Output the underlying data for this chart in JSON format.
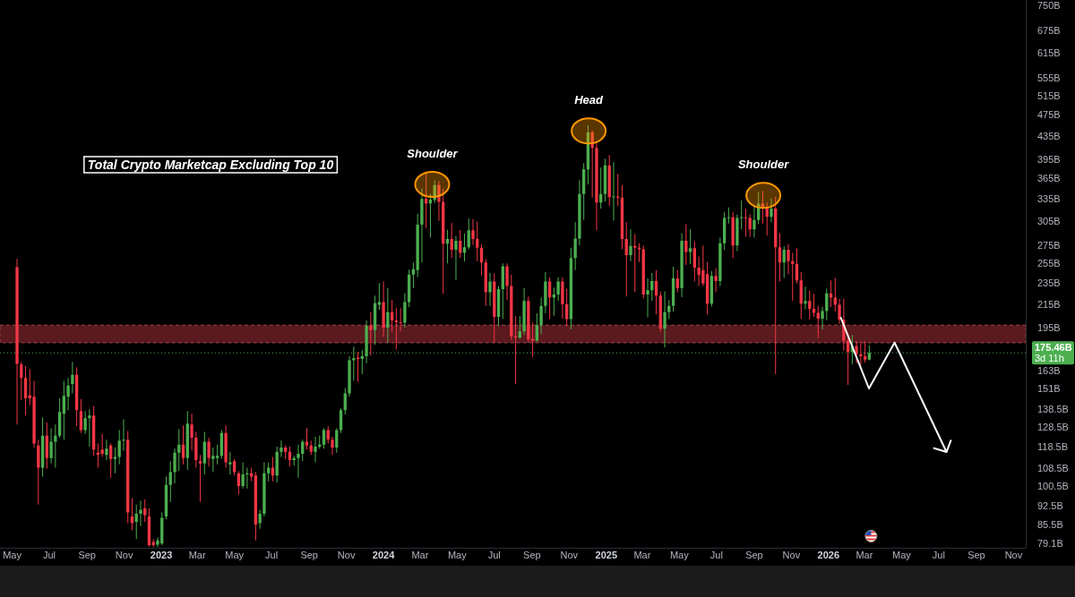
{
  "chart_data": {
    "type": "candlestick",
    "title": "Total Crypto Marketcap Excluding Top 10",
    "log": true,
    "xlim": [
      "2022-04-11",
      "2026-11-21"
    ],
    "ylim": [
      77.6,
      768
    ],
    "xticks": [
      {
        "value": "2022-05-01",
        "label": "May"
      },
      {
        "value": "2022-07-01",
        "label": "Jul"
      },
      {
        "value": "2022-09-01",
        "label": "Sep"
      },
      {
        "value": "2022-11-01",
        "label": "Nov"
      },
      {
        "value": "2023-01-01",
        "label": "2023"
      },
      {
        "value": "2023-03-01",
        "label": "Mar"
      },
      {
        "value": "2023-05-01",
        "label": "May"
      },
      {
        "value": "2023-07-01",
        "label": "Jul"
      },
      {
        "value": "2023-09-01",
        "label": "Sep"
      },
      {
        "value": "2023-11-01",
        "label": "Nov"
      },
      {
        "value": "2024-01-01",
        "label": "2024"
      },
      {
        "value": "2024-03-01",
        "label": "Mar"
      },
      {
        "value": "2024-05-01",
        "label": "May"
      },
      {
        "value": "2024-07-01",
        "label": "Jul"
      },
      {
        "value": "2024-09-01",
        "label": "Sep"
      },
      {
        "value": "2024-11-01",
        "label": "Nov"
      },
      {
        "value": "2025-01-01",
        "label": "2025"
      },
      {
        "value": "2025-03-01",
        "label": "Mar"
      },
      {
        "value": "2025-05-01",
        "label": "May"
      },
      {
        "value": "2025-07-01",
        "label": "Jul"
      },
      {
        "value": "2025-09-01",
        "label": "Sep"
      },
      {
        "value": "2025-11-01",
        "label": "Nov"
      },
      {
        "value": "2026-01-01",
        "label": "2026"
      },
      {
        "value": "2026-03-01",
        "label": "Mar"
      },
      {
        "value": "2026-05-01",
        "label": "May"
      },
      {
        "value": "2026-07-01",
        "label": "Jul"
      },
      {
        "value": "2026-09-01",
        "label": "Sep"
      },
      {
        "value": "2026-11-01",
        "label": "Nov"
      }
    ],
    "yticks": [
      {
        "value": 750,
        "label": "750B"
      },
      {
        "value": 675,
        "label": "675B"
      },
      {
        "value": 615,
        "label": "615B"
      },
      {
        "value": 555,
        "label": "555B"
      },
      {
        "value": 515,
        "label": "515B"
      },
      {
        "value": 475,
        "label": "475B"
      },
      {
        "value": 435,
        "label": "435B"
      },
      {
        "value": 395,
        "label": "395B"
      },
      {
        "value": 365,
        "label": "365B"
      },
      {
        "value": 335,
        "label": "335B"
      },
      {
        "value": 305,
        "label": "305B"
      },
      {
        "value": 275,
        "label": "275B"
      },
      {
        "value": 255,
        "label": "255B"
      },
      {
        "value": 235,
        "label": "235B"
      },
      {
        "value": 215,
        "label": "215B"
      },
      {
        "value": 195,
        "label": "195B"
      },
      {
        "value": 163,
        "label": "163B"
      },
      {
        "value": 151,
        "label": "151B"
      },
      {
        "value": 138.5,
        "label": "138.5B"
      },
      {
        "value": 128.5,
        "label": "128.5B"
      },
      {
        "value": 118.5,
        "label": "118.5B"
      },
      {
        "value": 108.5,
        "label": "108.5B"
      },
      {
        "value": 100.5,
        "label": "100.5B"
      },
      {
        "value": 92.5,
        "label": "92.5B"
      },
      {
        "value": 85.5,
        "label": "85.5B"
      },
      {
        "value": 79.1,
        "label": "79.1B"
      }
    ],
    "x": [
      "2022-05-09",
      "2022-05-16",
      "2022-05-23",
      "2022-05-30",
      "2022-06-06",
      "2022-06-13",
      "2022-06-20",
      "2022-06-27",
      "2022-07-04",
      "2022-07-11",
      "2022-07-18",
      "2022-07-25",
      "2022-08-01",
      "2022-08-08",
      "2022-08-15",
      "2022-08-22",
      "2022-08-29",
      "2022-09-05",
      "2022-09-12",
      "2022-09-19",
      "2022-09-26",
      "2022-10-03",
      "2022-10-10",
      "2022-10-17",
      "2022-10-24",
      "2022-10-31",
      "2022-11-07",
      "2022-11-14",
      "2022-11-21",
      "2022-11-28",
      "2022-12-05",
      "2022-12-12",
      "2022-12-19",
      "2022-12-26",
      "2023-01-02",
      "2023-01-09",
      "2023-01-16",
      "2023-01-23",
      "2023-01-30",
      "2023-02-06",
      "2023-02-13",
      "2023-02-20",
      "2023-02-27",
      "2023-03-06",
      "2023-03-13",
      "2023-03-20",
      "2023-03-27",
      "2023-04-03",
      "2023-04-10",
      "2023-04-17",
      "2023-04-24",
      "2023-05-01",
      "2023-05-08",
      "2023-05-15",
      "2023-05-22",
      "2023-05-29",
      "2023-06-05",
      "2023-06-12",
      "2023-06-19",
      "2023-06-26",
      "2023-07-03",
      "2023-07-10",
      "2023-07-17",
      "2023-07-24",
      "2023-07-31",
      "2023-08-07",
      "2023-08-14",
      "2023-08-21",
      "2023-08-28",
      "2023-09-04",
      "2023-09-11",
      "2023-09-18",
      "2023-09-25",
      "2023-10-02",
      "2023-10-09",
      "2023-10-16",
      "2023-10-23",
      "2023-10-30",
      "2023-11-06",
      "2023-11-13",
      "2023-11-20",
      "2023-11-27",
      "2023-12-04",
      "2023-12-11",
      "2023-12-18",
      "2023-12-25",
      "2024-01-01",
      "2024-01-08",
      "2024-01-15",
      "2024-01-22",
      "2024-01-29",
      "2024-02-05",
      "2024-02-12",
      "2024-02-19",
      "2024-02-26",
      "2024-03-04",
      "2024-03-11",
      "2024-03-18",
      "2024-03-25",
      "2024-04-01",
      "2024-04-08",
      "2024-04-15",
      "2024-04-22",
      "2024-04-29",
      "2024-05-06",
      "2024-05-13",
      "2024-05-20",
      "2024-05-27",
      "2024-06-03",
      "2024-06-10",
      "2024-06-17",
      "2024-06-24",
      "2024-07-01",
      "2024-07-08",
      "2024-07-15",
      "2024-07-22",
      "2024-07-29",
      "2024-08-05",
      "2024-08-12",
      "2024-08-19",
      "2024-08-26",
      "2024-09-02",
      "2024-09-09",
      "2024-09-16",
      "2024-09-23",
      "2024-09-30",
      "2024-10-07",
      "2024-10-14",
      "2024-10-21",
      "2024-10-28",
      "2024-11-04",
      "2024-11-11",
      "2024-11-18",
      "2024-11-25",
      "2024-12-02",
      "2024-12-09",
      "2024-12-16",
      "2024-12-23",
      "2024-12-30",
      "2025-01-06",
      "2025-01-13",
      "2025-01-20",
      "2025-01-27",
      "2025-02-03",
      "2025-02-10",
      "2025-02-17",
      "2025-02-24",
      "2025-03-03",
      "2025-03-10",
      "2025-03-17",
      "2025-03-24",
      "2025-03-31",
      "2025-04-07",
      "2025-04-14",
      "2025-04-21",
      "2025-04-28",
      "2025-05-05",
      "2025-05-12",
      "2025-05-19",
      "2025-05-26",
      "2025-06-02",
      "2025-06-09",
      "2025-06-16",
      "2025-06-23",
      "2025-06-30",
      "2025-07-07",
      "2025-07-14",
      "2025-07-21",
      "2025-07-28",
      "2025-08-04",
      "2025-08-11",
      "2025-08-18",
      "2025-08-25",
      "2025-09-01",
      "2025-09-08",
      "2025-09-15",
      "2025-09-22",
      "2025-09-29",
      "2025-10-06",
      "2025-10-13",
      "2025-10-20",
      "2025-10-27",
      "2025-11-03",
      "2025-11-10",
      "2025-11-17",
      "2025-11-24",
      "2025-12-01",
      "2025-12-08",
      "2025-12-15",
      "2025-12-22",
      "2025-12-29",
      "2026-01-05",
      "2026-01-12",
      "2026-01-19",
      "2026-01-26",
      "2026-02-02",
      "2026-02-09",
      "2026-02-16",
      "2026-02-23",
      "2026-03-02",
      "2026-03-09"
    ],
    "ohlc": [
      [
        251,
        260,
        130,
        167.5
      ],
      [
        167,
        169,
        144,
        158
      ],
      [
        158,
        166,
        135,
        145
      ],
      [
        147,
        164,
        141,
        145
      ],
      [
        146,
        156,
        118,
        120
      ],
      [
        119,
        122,
        93,
        108.5
      ],
      [
        108.5,
        134,
        104.5,
        124
      ],
      [
        124,
        131,
        108,
        113
      ],
      [
        113,
        128,
        110.5,
        121
      ],
      [
        121,
        130,
        108.5,
        124
      ],
      [
        124,
        145,
        123,
        137
      ],
      [
        136,
        156,
        122,
        146.5
      ],
      [
        146,
        158,
        138,
        153
      ],
      [
        154,
        169,
        148,
        160
      ],
      [
        160,
        165,
        129,
        138
      ],
      [
        137.5,
        144.5,
        125.5,
        127
      ],
      [
        127,
        137.5,
        125,
        133.5
      ],
      [
        133.5,
        138.5,
        118.5,
        135
      ],
      [
        135,
        140.5,
        114,
        117
      ],
      [
        115.5,
        120,
        108.5,
        114.5
      ],
      [
        117,
        125,
        113.5,
        115
      ],
      [
        114.5,
        122,
        112,
        117.5
      ],
      [
        119,
        120,
        104,
        112.5
      ],
      [
        112.5,
        118,
        106,
        113.5
      ],
      [
        113.5,
        127,
        110,
        121.5
      ],
      [
        121.5,
        133,
        116.5,
        122
      ],
      [
        122,
        126.5,
        86,
        90
      ],
      [
        88.5,
        95.5,
        83.5,
        86
      ],
      [
        86.5,
        93,
        80.5,
        89.5
      ],
      [
        89.5,
        94.5,
        85,
        91
      ],
      [
        91.5,
        95,
        86.5,
        89
      ],
      [
        88.5,
        91.5,
        78,
        78.5
      ],
      [
        79.5,
        80.5,
        77.8,
        78.5
      ],
      [
        78.6,
        81,
        77.8,
        80
      ],
      [
        79,
        90,
        78.5,
        88
      ],
      [
        88.5,
        104.5,
        87.5,
        101
      ],
      [
        101,
        111.5,
        94,
        106.5
      ],
      [
        106.5,
        117.5,
        101.5,
        115.5
      ],
      [
        115.5,
        127.5,
        107,
        119.5
      ],
      [
        119.5,
        129.5,
        110,
        113
      ],
      [
        113,
        137.5,
        107.5,
        130.5
      ],
      [
        130,
        136,
        116.5,
        123
      ],
      [
        123,
        126,
        108.5,
        112
      ],
      [
        111.5,
        114.5,
        94,
        110.5
      ],
      [
        110.5,
        126,
        105.5,
        121
      ],
      [
        121,
        123,
        109,
        113
      ],
      [
        112.5,
        118,
        106.5,
        114
      ],
      [
        113,
        119.5,
        110,
        114
      ],
      [
        114,
        127,
        112.5,
        125.5
      ],
      [
        125.5,
        129.5,
        108.5,
        111
      ],
      [
        110,
        116,
        105.5,
        111
      ],
      [
        111.5,
        112.5,
        105,
        106.5
      ],
      [
        106,
        107,
        97,
        100.5
      ],
      [
        100.5,
        111,
        99.5,
        105.5
      ],
      [
        105.5,
        108.5,
        99.5,
        106
      ],
      [
        106,
        108.5,
        102.5,
        104.5
      ],
      [
        105,
        106.5,
        80,
        85.5
      ],
      [
        86,
        91,
        84,
        89.5
      ],
      [
        89.5,
        111,
        88.5,
        106
      ],
      [
        106,
        111,
        102.5,
        108.5
      ],
      [
        108.5,
        113.5,
        102.5,
        105
      ],
      [
        105,
        118.5,
        102,
        116
      ],
      [
        116,
        121.5,
        113.5,
        118
      ],
      [
        118,
        119,
        112.5,
        116
      ],
      [
        116,
        118.5,
        109,
        112
      ],
      [
        112,
        114,
        109.5,
        113
      ],
      [
        113,
        119.5,
        104,
        115
      ],
      [
        115,
        122,
        111.5,
        121
      ],
      [
        121,
        128,
        117,
        119
      ],
      [
        119,
        121.5,
        114.5,
        116
      ],
      [
        116,
        123.5,
        111,
        118.5
      ],
      [
        118.5,
        124,
        117.5,
        119.5
      ],
      [
        119.5,
        128,
        117.5,
        127
      ],
      [
        127,
        129,
        120,
        122
      ],
      [
        122,
        123.5,
        114.5,
        118
      ],
      [
        118,
        128,
        115.5,
        127
      ],
      [
        127,
        139,
        125.5,
        138
      ],
      [
        138,
        151.5,
        135.5,
        148
      ],
      [
        148,
        173,
        146,
        170
      ],
      [
        170,
        180,
        156,
        171.5
      ],
      [
        172,
        176,
        155.5,
        171
      ],
      [
        171,
        177.5,
        160.5,
        173
      ],
      [
        173,
        201,
        168,
        196.5
      ],
      [
        196.5,
        208,
        173.5,
        193
      ],
      [
        193,
        223,
        181.5,
        216
      ],
      [
        214.5,
        235,
        210,
        217
      ],
      [
        217,
        236.5,
        187.5,
        195
      ],
      [
        195,
        230,
        183,
        208
      ],
      [
        208,
        219,
        192,
        201
      ],
      [
        201,
        212,
        178,
        199.5
      ],
      [
        199.5,
        211.5,
        192,
        199
      ],
      [
        199,
        225,
        195,
        217
      ],
      [
        217,
        248.5,
        212.5,
        243.5
      ],
      [
        243.5,
        256,
        230,
        249
      ],
      [
        248,
        314,
        241,
        300
      ],
      [
        300,
        349,
        256,
        334
      ],
      [
        334.5,
        371.5,
        295.5,
        328
      ],
      [
        328,
        341,
        284,
        333
      ],
      [
        332.5,
        361.5,
        328.5,
        354
      ],
      [
        354,
        360,
        305,
        330
      ],
      [
        330,
        349,
        224.5,
        277
      ],
      [
        277,
        293.5,
        255,
        282.5
      ],
      [
        282.5,
        302,
        261,
        270
      ],
      [
        270,
        286,
        238,
        280.5
      ],
      [
        280.5,
        293.5,
        261,
        266.5
      ],
      [
        266.5,
        289,
        257,
        273
      ],
      [
        273,
        308,
        270.5,
        293
      ],
      [
        293,
        307,
        275.5,
        282.5
      ],
      [
        282.5,
        304,
        257.5,
        272.5
      ],
      [
        272.5,
        276.5,
        242.5,
        256
      ],
      [
        256,
        259.5,
        213.5,
        226
      ],
      [
        226,
        245,
        213.5,
        236.5
      ],
      [
        236.5,
        244.5,
        183,
        204
      ],
      [
        204,
        232,
        196,
        229
      ],
      [
        229,
        255,
        202,
        252
      ],
      [
        252,
        255,
        219,
        232
      ],
      [
        232,
        243.5,
        185,
        188
      ],
      [
        188,
        204.5,
        154,
        187
      ],
      [
        187,
        204.5,
        186,
        192
      ],
      [
        192,
        230,
        189,
        218
      ],
      [
        218,
        222,
        183,
        185.5
      ],
      [
        186,
        199,
        172.5,
        184.5
      ],
      [
        184.5,
        207,
        184,
        197
      ],
      [
        197,
        221,
        190,
        213.5
      ],
      [
        213.5,
        246,
        207,
        236.5
      ],
      [
        236.5,
        240.5,
        202,
        221
      ],
      [
        221,
        230.5,
        205,
        224
      ],
      [
        224,
        240.5,
        218,
        236.5
      ],
      [
        236.5,
        240.5,
        202.5,
        215
      ],
      [
        215,
        229.5,
        196,
        202
      ],
      [
        202,
        272.5,
        193.5,
        261
      ],
      [
        261,
        303,
        248,
        283
      ],
      [
        283,
        361.5,
        275,
        341
      ],
      [
        341,
        388,
        306,
        378
      ],
      [
        378,
        454.5,
        355,
        441
      ],
      [
        441,
        445.5,
        336,
        413.5
      ],
      [
        413.5,
        425,
        293,
        329
      ],
      [
        329,
        381,
        321,
        341
      ],
      [
        341,
        395.5,
        330.5,
        384.5
      ],
      [
        384.5,
        401.5,
        324.5,
        336.5
      ],
      [
        336.5,
        389.5,
        305,
        337.5
      ],
      [
        337.5,
        371,
        324.5,
        336
      ],
      [
        336,
        354,
        270.5,
        282.5
      ],
      [
        282.5,
        303.5,
        222,
        264
      ],
      [
        264,
        294,
        257.5,
        274.5
      ],
      [
        274.5,
        288.5,
        226,
        272.5
      ],
      [
        272.5,
        277.5,
        256.5,
        270.5
      ],
      [
        270.5,
        275,
        220.5,
        224
      ],
      [
        224,
        239.5,
        203.5,
        228
      ],
      [
        228,
        245,
        218,
        237
      ],
      [
        237,
        248,
        206,
        223
      ],
      [
        223,
        227,
        191.5,
        194
      ],
      [
        194,
        227,
        179.5,
        208
      ],
      [
        208,
        219,
        202,
        213.5
      ],
      [
        213.5,
        251.5,
        208.5,
        239.5
      ],
      [
        239.5,
        248,
        226,
        230
      ],
      [
        230,
        289.5,
        221.5,
        280.5
      ],
      [
        280.5,
        300.5,
        253.5,
        267.5
      ],
      [
        267.5,
        294.5,
        254.5,
        272
      ],
      [
        272,
        279.5,
        236.5,
        250.5
      ],
      [
        250.5,
        262.5,
        232,
        243
      ],
      [
        248,
        275,
        232,
        234.5
      ],
      [
        244,
        256.5,
        206,
        215.5
      ],
      [
        215.5,
        247,
        213,
        242
      ],
      [
        242,
        250,
        226,
        237
      ],
      [
        237,
        284,
        232,
        277.5
      ],
      [
        277.5,
        316.5,
        270,
        308.5
      ],
      [
        308.5,
        322.5,
        301.5,
        309.5
      ],
      [
        309.5,
        316.5,
        261,
        275
      ],
      [
        275,
        313,
        268.5,
        308.5
      ],
      [
        308.5,
        332,
        294,
        309.5
      ],
      [
        309.5,
        321,
        285.5,
        308.5
      ],
      [
        308.5,
        313.5,
        285,
        294
      ],
      [
        294,
        324.5,
        284,
        306
      ],
      [
        306,
        344,
        300.5,
        327.5
      ],
      [
        327.5,
        345.5,
        301.5,
        321.5
      ],
      [
        321.5,
        329.5,
        286.5,
        310
      ],
      [
        310,
        335,
        303,
        321
      ],
      [
        321,
        337,
        160.5,
        273
      ],
      [
        273,
        289.5,
        236.5,
        256
      ],
      [
        256,
        274,
        240,
        270
      ],
      [
        270,
        276.5,
        244,
        257.5
      ],
      [
        257.5,
        266.5,
        218,
        254.5
      ],
      [
        254.5,
        272,
        234.5,
        237.5
      ],
      [
        237.5,
        246,
        202,
        215.5
      ],
      [
        215.5,
        231.5,
        210.5,
        218
      ],
      [
        218,
        227.5,
        201.5,
        211
      ],
      [
        211,
        224.5,
        204,
        207.5
      ],
      [
        207.5,
        213.5,
        186.5,
        202.5
      ],
      [
        202.5,
        212.5,
        193.5,
        209
      ],
      [
        209,
        229.5,
        201,
        225
      ],
      [
        225,
        237.5,
        212.5,
        221
      ],
      [
        221,
        240,
        208.5,
        214.5
      ],
      [
        214.5,
        220,
        198,
        201.5
      ],
      [
        201.5,
        220,
        177,
        184.5
      ],
      [
        184.5,
        186.5,
        153.5,
        176
      ],
      [
        176,
        189,
        167,
        180.5
      ],
      [
        180.5,
        184.5,
        168,
        174.5
      ],
      [
        174.5,
        184,
        166,
        173
      ],
      [
        173,
        184,
        168.5,
        170.5
      ],
      [
        170.5,
        181,
        170,
        175.46
      ]
    ],
    "colors": [
      "#f23645",
      "#f23645",
      "#f23645",
      "#f23645",
      "#f23645",
      "#f23645",
      "#4caf50",
      "#f23645",
      "#4caf50",
      "#4caf50",
      "#4caf50",
      "#4caf50",
      "#4caf50",
      "#4caf50",
      "#f23645",
      "#f23645",
      "#4caf50",
      "#4caf50",
      "#f23645",
      "#f23645",
      "#f23645",
      "#4caf50",
      "#f23645",
      "#4caf50",
      "#4caf50",
      "#4caf50",
      "#f23645",
      "#f23645",
      "#4caf50",
      "#4caf50",
      "#f23645",
      "#f23645",
      "#f23645",
      "#4caf50",
      "#4caf50",
      "#4caf50",
      "#4caf50",
      "#4caf50",
      "#4caf50",
      "#f23645",
      "#4caf50",
      "#f23645",
      "#f23645",
      "#f23645",
      "#4caf50",
      "#f23645",
      "#4caf50",
      "#4caf50",
      "#4caf50",
      "#f23645",
      "#4caf50",
      "#f23645",
      "#f23645",
      "#4caf50",
      "#4caf50",
      "#f23645",
      "#f23645",
      "#4caf50",
      "#4caf50",
      "#4caf50",
      "#f23645",
      "#4caf50",
      "#4caf50",
      "#f23645",
      "#f23645",
      "#4caf50",
      "#4caf50",
      "#4caf50",
      "#f23645",
      "#f23645",
      "#4caf50",
      "#4caf50",
      "#4caf50",
      "#f23645",
      "#f23645",
      "#4caf50",
      "#4caf50",
      "#4caf50",
      "#4caf50",
      "#4caf50",
      "#f23645",
      "#4caf50",
      "#4caf50",
      "#f23645",
      "#4caf50",
      "#4caf50",
      "#f23645",
      "#4caf50",
      "#f23645",
      "#f23645",
      "#f23645",
      "#4caf50",
      "#4caf50",
      "#4caf50",
      "#4caf50",
      "#4caf50",
      "#f23645",
      "#4caf50",
      "#4caf50",
      "#f23645",
      "#f23645",
      "#4caf50",
      "#f23645",
      "#4caf50",
      "#f23645",
      "#4caf50",
      "#4caf50",
      "#f23645",
      "#f23645",
      "#f23645",
      "#f23645",
      "#4caf50",
      "#f23645",
      "#4caf50",
      "#4caf50",
      "#f23645",
      "#f23645",
      "#f23645",
      "#4caf50",
      "#4caf50",
      "#f23645",
      "#f23645",
      "#4caf50",
      "#4caf50",
      "#4caf50",
      "#f23645",
      "#4caf50",
      "#4caf50",
      "#f23645",
      "#f23645",
      "#4caf50",
      "#4caf50",
      "#4caf50",
      "#4caf50",
      "#4caf50",
      "#f23645",
      "#f23645",
      "#4caf50",
      "#4caf50",
      "#f23645",
      "#4caf50",
      "#f23645",
      "#f23645",
      "#f23645",
      "#4caf50",
      "#f23645",
      "#f23645",
      "#f23645",
      "#4caf50",
      "#4caf50",
      "#f23645",
      "#f23645",
      "#4caf50",
      "#4caf50",
      "#4caf50",
      "#f23645",
      "#4caf50",
      "#f23645",
      "#4caf50",
      "#f23645",
      "#f23645",
      "#f23645",
      "#f23645",
      "#4caf50",
      "#f23645",
      "#4caf50",
      "#4caf50",
      "#4caf50",
      "#f23645",
      "#4caf50",
      "#4caf50",
      "#f23645",
      "#f23645",
      "#4caf50",
      "#4caf50",
      "#f23645",
      "#f23645",
      "#4caf50",
      "#f23645",
      "#f23645",
      "#4caf50",
      "#f23645",
      "#f23645",
      "#f23645",
      "#f23645",
      "#4caf50",
      "#f23645",
      "#f23645",
      "#f23645",
      "#4caf50",
      "#4caf50",
      "#f23645",
      "#f23645",
      "#f23645",
      "#f23645",
      "#f23645",
      "#4caf50",
      "#f23645",
      "#f23645",
      "#f23645",
      "#4caf50"
    ],
    "bands": [
      {
        "axis": "y",
        "from": 183,
        "to": 197,
        "color": "#5a1a1e"
      }
    ],
    "ref_lines": [
      {
        "axis": "y",
        "value": 175.46,
        "label": "175.46B\n3d 11h",
        "color": "#4caf50",
        "line_style": "dotted"
      }
    ],
    "annotations": [
      {
        "text": "Shoulder",
        "x": "2024-03-21",
        "y": 355
      },
      {
        "text": "Head",
        "x": "2024-12-03",
        "y": 444
      },
      {
        "text": "Shoulder",
        "x": "2025-09-16",
        "y": 339
      }
    ]
  }
}
